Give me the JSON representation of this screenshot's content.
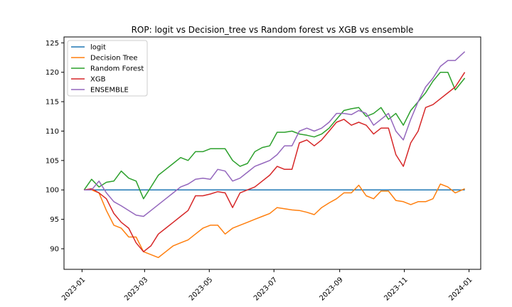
{
  "chart_data": {
    "type": "line",
    "title": "ROP: logit vs Decision_tree vs Random forest vs XGB vs ensemble",
    "xlabel": "",
    "ylabel": "",
    "xlim": [
      "2022-12-15",
      "2024-01-12"
    ],
    "ylim": [
      86.5,
      126.0
    ],
    "grid": false,
    "legend_position": "top-left",
    "x_ticks": [
      "2023-01",
      "2023-03",
      "2023-05",
      "2023-07",
      "2023-09",
      "2023-11",
      "2024-01"
    ],
    "x_tick_dates": [
      "2023-01-01",
      "2023-03-01",
      "2023-05-01",
      "2023-07-01",
      "2023-09-01",
      "2023-11-01",
      "2024-01-01"
    ],
    "y_ticks": [
      90,
      95,
      100,
      105,
      110,
      115,
      120,
      125
    ],
    "x": [
      "2023-01-03",
      "2023-01-10",
      "2023-01-17",
      "2023-01-24",
      "2023-01-31",
      "2023-02-07",
      "2023-02-14",
      "2023-02-21",
      "2023-02-28",
      "2023-03-07",
      "2023-03-14",
      "2023-03-21",
      "2023-03-28",
      "2023-04-04",
      "2023-04-11",
      "2023-04-18",
      "2023-04-25",
      "2023-05-02",
      "2023-05-09",
      "2023-05-16",
      "2023-05-23",
      "2023-05-30",
      "2023-06-06",
      "2023-06-13",
      "2023-06-20",
      "2023-06-27",
      "2023-07-04",
      "2023-07-11",
      "2023-07-18",
      "2023-07-25",
      "2023-08-01",
      "2023-08-08",
      "2023-08-15",
      "2023-08-22",
      "2023-08-29",
      "2023-09-05",
      "2023-09-12",
      "2023-09-19",
      "2023-09-26",
      "2023-10-03",
      "2023-10-10",
      "2023-10-17",
      "2023-10-24",
      "2023-10-31",
      "2023-11-07",
      "2023-11-14",
      "2023-11-21",
      "2023-11-28",
      "2023-12-05",
      "2023-12-12",
      "2023-12-19",
      "2023-12-28"
    ],
    "series": [
      {
        "name": "logit",
        "color": "#1f77b4",
        "values": [
          100,
          100,
          100,
          100,
          100,
          100,
          100,
          100,
          100,
          100,
          100,
          100,
          100,
          100,
          100,
          100,
          100,
          100,
          100,
          100,
          100,
          100,
          100,
          100,
          100,
          100,
          100,
          100,
          100,
          100,
          100,
          100,
          100,
          100,
          100,
          100,
          100,
          100,
          100,
          100,
          100,
          100,
          100,
          100,
          100,
          100,
          100,
          100,
          100,
          100,
          100,
          100
        ]
      },
      {
        "name": "Decision Tree",
        "color": "#ff7f0e",
        "values": [
          100,
          100,
          99.5,
          96.5,
          94,
          93.5,
          92,
          92,
          89.5,
          89,
          88.5,
          89.5,
          90.5,
          91,
          91.5,
          92.5,
          93.5,
          94,
          94,
          92.5,
          93.5,
          94,
          94.5,
          95,
          95.5,
          96,
          97,
          96.8,
          96.6,
          96.5,
          96.2,
          95.8,
          97,
          97.8,
          98.5,
          99.5,
          99.5,
          100.8,
          99,
          98.5,
          99.8,
          99.8,
          98.2,
          98,
          97.5,
          98,
          98,
          98.5,
          101,
          100.5,
          99.5,
          100.2
        ]
      },
      {
        "name": "Random Forest",
        "color": "#2ca02c",
        "values": [
          100,
          101.8,
          100.5,
          101.3,
          101.5,
          103.2,
          102,
          101.5,
          98.5,
          100.5,
          102.5,
          103.5,
          104.5,
          105.5,
          105,
          106.5,
          106.5,
          107,
          107,
          107,
          105,
          104,
          104.5,
          106.5,
          107.2,
          107.5,
          109.8,
          109.8,
          110,
          109.5,
          109.3,
          109,
          109.5,
          110.5,
          112,
          113.5,
          113.8,
          114,
          112.5,
          113,
          114,
          112,
          113,
          111,
          113.5,
          115,
          116.5,
          118.5,
          120,
          120,
          117,
          119
        ]
      },
      {
        "name": "XGB",
        "color": "#d62728",
        "values": [
          100,
          100.2,
          99.5,
          98.5,
          96,
          94.5,
          93.5,
          91,
          89.5,
          90.5,
          92.5,
          93.5,
          94.5,
          95.5,
          96.5,
          99,
          99,
          99.3,
          99.7,
          99.5,
          97,
          99.5,
          100,
          100.5,
          101.5,
          102.5,
          104,
          103.5,
          103.5,
          108,
          108.5,
          107.5,
          108.5,
          110,
          111.5,
          112,
          111,
          111.5,
          111,
          109.5,
          110.5,
          110.5,
          106,
          104,
          108,
          110,
          114,
          114.5,
          115.5,
          116.5,
          117.5,
          120
        ]
      },
      {
        "name": "ENSEMBLE",
        "color": "#9467bd",
        "values": [
          100,
          100,
          101.5,
          99.5,
          98,
          97.3,
          96.5,
          95.7,
          95.5,
          96.5,
          97.5,
          98.5,
          99.5,
          100.5,
          101,
          101.8,
          102,
          101.8,
          103.5,
          103.2,
          101.5,
          102,
          103,
          104,
          104.5,
          105,
          106,
          107.5,
          107.5,
          110,
          110.5,
          110,
          110.5,
          111.5,
          113,
          113,
          112.8,
          113.5,
          113,
          111,
          112,
          113,
          110,
          108.5,
          112,
          115,
          117.5,
          119,
          121,
          122,
          122,
          123.5
        ]
      }
    ]
  }
}
